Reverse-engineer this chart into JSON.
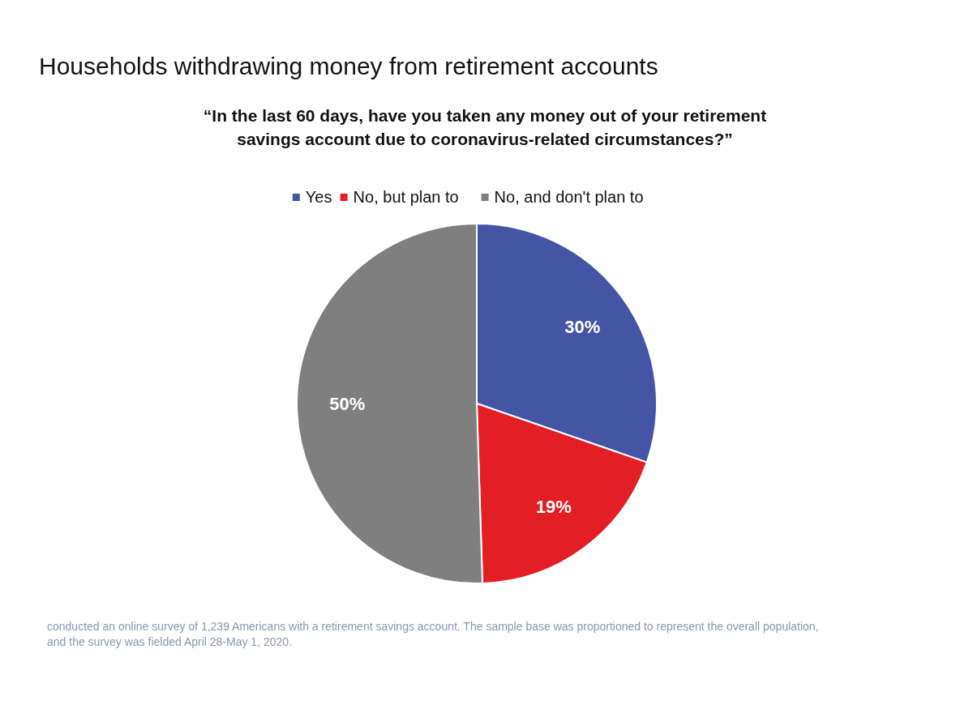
{
  "chart_data": {
    "type": "pie",
    "title": "Households withdrawing money from retirement accounts",
    "subtitle": "“In the last 60 days, have you taken any money out of your retirement savings account due to coronavirus-related circumstances?”",
    "categories": [
      "Yes",
      "No, but plan to",
      "No, and don't plan to"
    ],
    "values": [
      30,
      19,
      50
    ],
    "colors": [
      "#4455a6",
      "#e31e24",
      "#7f7f7f"
    ],
    "value_labels": [
      "30%",
      "19%",
      "50%"
    ],
    "legend": "top",
    "annotations": [
      "conducted an online survey of 1,239 Americans with a retirement savings account. The sample base was proportioned to represent the overall population, and the survey was fielded April 28-May 1, 2020."
    ]
  }
}
